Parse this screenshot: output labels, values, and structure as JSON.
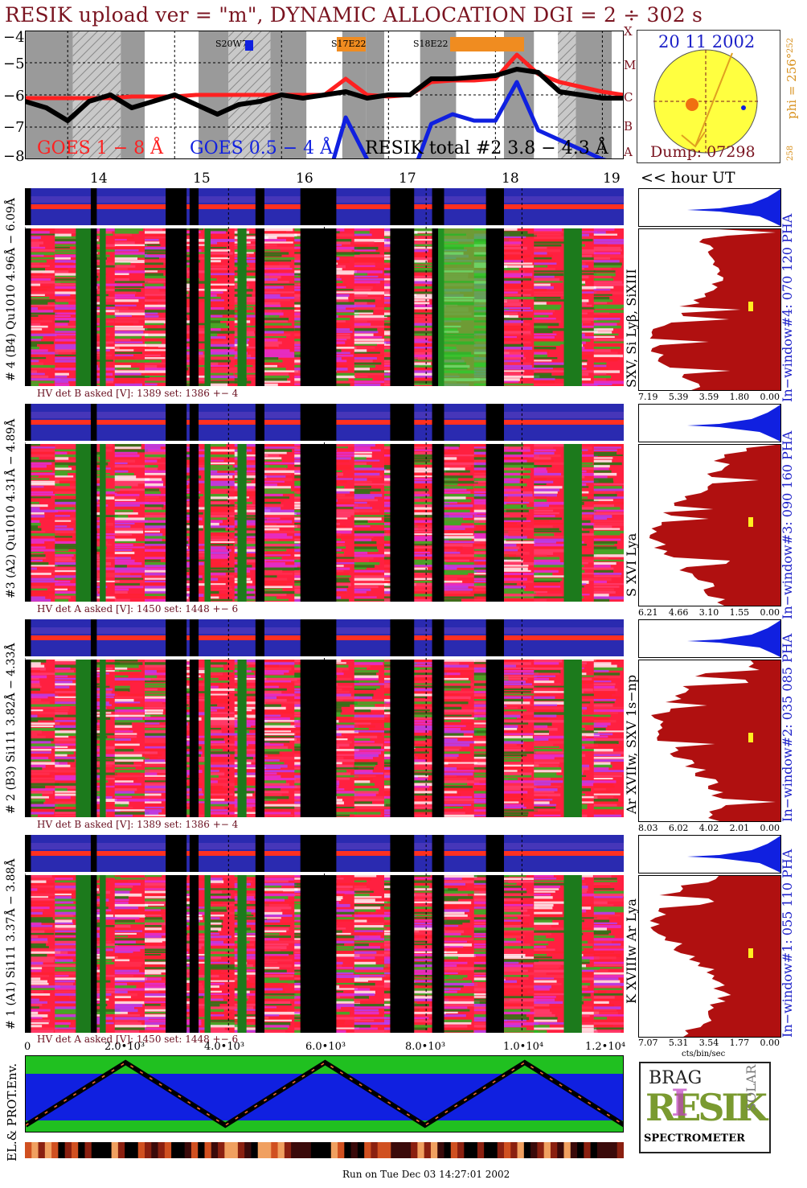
{
  "header": {
    "title": "RESIK upload ver = \"m\", DYNAMIC ALLOCATION  DGI =   2 ÷ 302 s"
  },
  "goes_panel": {
    "y_ticks": [
      "−4",
      "−5",
      "−6",
      "−7",
      "−8"
    ],
    "class_letters": [
      "X",
      "M",
      "C",
      "B",
      "A"
    ],
    "hour_ticks": [
      "14",
      "15",
      "16",
      "17",
      "18",
      "19"
    ],
    "hour_unit": "<< hour UT",
    "legend": {
      "goes_long": "GOES 1 − 8 Å",
      "goes_short": "GOES 0.5 − 4 Å",
      "resik_total": "RESIK total #2  3.8 − 4.3 Å"
    },
    "markers": {
      "m1": "S20W77",
      "m2": "S17E22",
      "m3": "S18E22"
    }
  },
  "sun_panel": {
    "date": "20 11 2002",
    "phi": "phi = 256°",
    "phi_sup": "252",
    "phi_bottom": "258",
    "dump": "Dump: 07298"
  },
  "channels": [
    {
      "id": "ch4",
      "ylabel": "# 4 (B4) Qu1010 4.96Å − 6.09Å",
      "hv": "HV det B asked [V]:  1389  set:  1386  +−    4",
      "lines": "SXV, Si Lyβ, SiXIII",
      "window": "In−window#4:  070 120 PHA",
      "xticks": [
        "7.19",
        "5.39",
        "3.59",
        "1.80",
        "0.00"
      ]
    },
    {
      "id": "ch3",
      "ylabel": "#3 (A2) Qu1010  4.31Å − 4.89Å",
      "hv": "HV det A asked [V]:  1450  set:  1448  +−    6",
      "lines": "S XVI Lya",
      "window": "In−window#3:  090 160 PHA",
      "xticks": [
        "6.21",
        "4.66",
        "3.10",
        "1.55",
        "0.00"
      ]
    },
    {
      "id": "ch2",
      "ylabel": "# 2 (B3) Si111  3.82Å − 4.33Å",
      "hv": "HV det B asked [V]:  1389  set:  1386  +−    4",
      "lines": "Ar XVIIw,  SXV  1s−np",
      "window": "In−window#2:  035 085 PHA",
      "xticks": [
        "8.03",
        "6.02",
        "4.02",
        "2.01",
        "0.00"
      ]
    },
    {
      "id": "ch1",
      "ylabel": "# 1 (A1) Si111  3.37Å − 3.88Å",
      "hv": "HV det A asked [V]:  1450  set:  1448  +−    6",
      "lines": "K XVIIIw  Ar Lya",
      "window": "In−window#1:  055 110 PHA",
      "xticks": [
        "7.07",
        "5.31",
        "3.54",
        "1.77",
        "0.00"
      ],
      "xunit": "cts/bin/sec"
    }
  ],
  "bottom": {
    "env_label": "EL.& PROT.Env.",
    "axis_ticks": [
      "0",
      "2.0•10³",
      "4.0•10³",
      "6.0•10³",
      "8.0•10³",
      "1.0•10⁴",
      "1.2•10⁴"
    ],
    "run_on": "Run on Tue Dec 03 14:27:01 2002"
  },
  "logo": {
    "line1": "BRAG",
    "main": "RESIK",
    "side": "SOLAR",
    "footer": "SPECTROMETER"
  },
  "chart_data": {
    "type": "line",
    "title": "RESIK upload ver = \"m\", DYNAMIC ALLOCATION  DGI =   2 ÷ 302 s",
    "xlabel": "<< hour UT",
    "ylabel": "",
    "x": [
      13.6,
      13.8,
      14.0,
      14.2,
      14.4,
      14.6,
      14.8,
      15.0,
      15.2,
      15.4,
      15.6,
      15.8,
      16.0,
      16.2,
      16.4,
      16.6,
      16.8,
      17.0,
      17.2,
      17.4,
      17.6,
      17.8,
      18.0,
      18.2,
      18.4,
      18.6,
      18.8,
      19.0,
      19.2
    ],
    "xlim": [
      13.6,
      19.2
    ],
    "ylim": [
      -8,
      -4
    ],
    "yscale": "log10 W/m²",
    "series": [
      {
        "name": "GOES 1 − 8 Å",
        "color": "#ff2020",
        "values": [
          -6.1,
          -6.1,
          -6.1,
          -6.1,
          -6.1,
          -6.05,
          -6.05,
          -6.05,
          -6.0,
          -6.0,
          -6.0,
          -6.0,
          -6.0,
          -6.0,
          -6.0,
          -5.5,
          -6.0,
          -6.05,
          -6.0,
          -5.6,
          -5.55,
          -5.55,
          -5.5,
          -4.75,
          -5.35,
          -5.6,
          -5.75,
          -5.9,
          -6.0
        ]
      },
      {
        "name": "GOES 0.5 − 4 Å",
        "color": "#1020e0",
        "values": [
          -9,
          -9,
          -9,
          -9,
          -9,
          -9,
          -9,
          -9,
          -9,
          -9,
          -9,
          -9,
          -9,
          -9,
          -9,
          -6.7,
          -8,
          -9,
          -8.7,
          -6.9,
          -6.6,
          -6.8,
          -6.8,
          -5.6,
          -7.1,
          -7.4,
          -7.7,
          -8.0,
          -8.2
        ]
      },
      {
        "name": "RESIK total #2  3.8 − 4.3 Å",
        "color": "#000000",
        "values": [
          -6.2,
          -6.4,
          -6.8,
          -6.2,
          -6.0,
          -6.4,
          -6.2,
          -6.0,
          -6.3,
          -6.6,
          -6.3,
          -6.2,
          -6.0,
          -6.1,
          -6.0,
          -5.9,
          -6.1,
          -6.0,
          -6.0,
          -5.5,
          -5.5,
          -5.45,
          -5.4,
          -5.2,
          -5.3,
          -5.9,
          -6.0,
          -6.1,
          -6.1
        ]
      }
    ],
    "grid": true,
    "legend_position": "bottom"
  }
}
